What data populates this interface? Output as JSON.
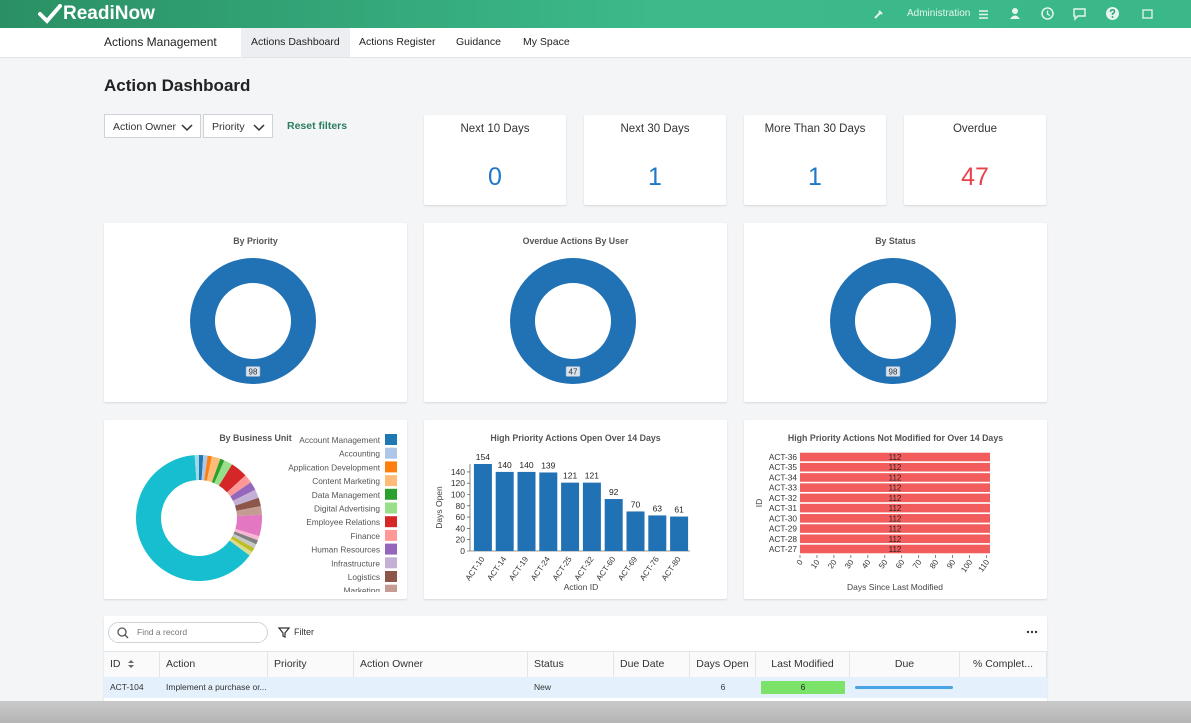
{
  "header": {
    "brand": "ReadiNow",
    "admin": "Administration"
  },
  "nav": {
    "app": "Actions Management",
    "tabs": [
      {
        "label": "Actions Dashboard",
        "active": true
      },
      {
        "label": "Actions Register"
      },
      {
        "label": "Guidance"
      },
      {
        "label": "My Space"
      }
    ]
  },
  "page": {
    "title": "Action Dashboard",
    "filters": [
      "Action Owner",
      "Priority"
    ],
    "reset": "Reset filters"
  },
  "kpis": [
    {
      "label": "Next 10 Days",
      "value": 0,
      "color": "#1f78c8"
    },
    {
      "label": "Next 30 Days",
      "value": 1,
      "color": "#1f78c8"
    },
    {
      "label": "More Than 30 Days",
      "value": 1,
      "color": "#1f78c8"
    },
    {
      "label": "Overdue",
      "value": 47,
      "color": "#e9424e"
    }
  ],
  "chart_data": [
    {
      "type": "donut",
      "title": "By Priority",
      "values": [
        98
      ],
      "colors": [
        "#2171b5"
      ],
      "data_labels": true
    },
    {
      "type": "donut",
      "title": "Overdue Actions By User",
      "values": [
        47
      ],
      "colors": [
        "#2171b5"
      ],
      "data_labels": true
    },
    {
      "type": "donut",
      "title": "By Status",
      "values": [
        98
      ],
      "colors": [
        "#2171b5"
      ],
      "data_labels": true
    },
    {
      "type": "donut",
      "title": "By Business Unit",
      "legend": "right",
      "categories": [
        "Account Management",
        "Accounting",
        "Application Development",
        "Content Marketing",
        "Data Management",
        "Digital Advertising",
        "Employee Relations",
        "Finance",
        "Human Resources",
        "Infrastructure",
        "Logistics",
        "Marketing",
        null,
        null,
        null,
        null,
        null,
        null,
        null,
        null
      ],
      "values": [
        1,
        1,
        1,
        2,
        1,
        2,
        4,
        2,
        2,
        2,
        2,
        2,
        5,
        1,
        1,
        1,
        1,
        1,
        58,
        1
      ],
      "colors": [
        "#1f77b4",
        "#aec7e8",
        "#ff7f0e",
        "#ffbb78",
        "#2ca02c",
        "#98df8a",
        "#d62728",
        "#ff9896",
        "#9467bd",
        "#c5b0d5",
        "#8c564b",
        "#c49c94",
        "#e377c2",
        "#f7b6d2",
        "#7f7f7f",
        "#c7c7c7",
        "#bcbd22",
        "#dbdb8d",
        "#17becf",
        "#9edae5"
      ],
      "data_labels": false
    },
    {
      "type": "bar",
      "title": "High Priority Actions Open Over 14 Days",
      "categories": [
        "ACT-10",
        "ACT-14",
        "ACT-19",
        "ACT-24",
        "ACT-25",
        "ACT-32",
        "ACT-60",
        "ACT-69",
        "ACT-76",
        "ACT-80"
      ],
      "values": [
        154,
        140,
        140,
        139,
        121,
        121,
        92,
        70,
        63,
        61
      ],
      "color": "#2171b5",
      "xlabel": "Action ID",
      "ylabel": "Days Open",
      "ylim": [
        0,
        154
      ],
      "yticks": [
        0,
        20,
        40,
        60,
        80,
        100,
        120,
        140
      ],
      "data_labels": true
    },
    {
      "type": "barh",
      "title": "High Priority Actions Not Modified for Over 14 Days",
      "categories": [
        "ACT-36",
        "ACT-35",
        "ACT-34",
        "ACT-33",
        "ACT-32",
        "ACT-31",
        "ACT-30",
        "ACT-29",
        "ACT-28",
        "ACT-27"
      ],
      "values": [
        112,
        112,
        112,
        112,
        112,
        112,
        112,
        112,
        112,
        112
      ],
      "color": "#f25c5c",
      "xlabel": "Days Since Last Modified",
      "ylabel": "ID",
      "xlim": [
        0,
        112
      ],
      "xticks": [
        0,
        10,
        20,
        30,
        40,
        50,
        60,
        70,
        80,
        90,
        100,
        110
      ],
      "data_labels": true
    }
  ],
  "table": {
    "search": "Find a record",
    "filter": "Filter",
    "columns": [
      "ID",
      "Action",
      "Priority",
      "Action Owner",
      "Status",
      "Due Date",
      "Days Open",
      "Last Modified",
      "Due",
      "% Complet..."
    ],
    "rows": [
      [
        "ACT-104",
        "Implement a purchase or...",
        null,
        null,
        "New",
        null,
        6,
        6,
        null,
        null
      ]
    ]
  }
}
